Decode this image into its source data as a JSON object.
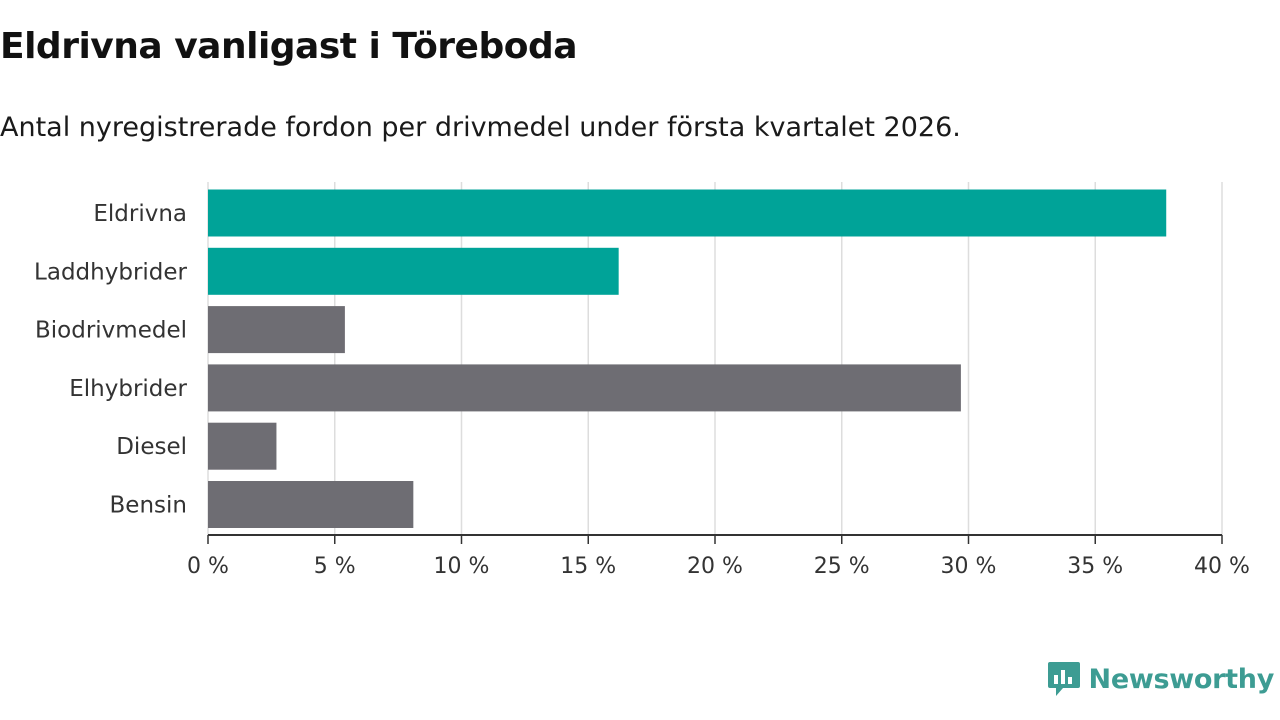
{
  "header": {
    "title": "Eldrivna vanligast i Töreboda",
    "subtitle": "Antal nyregistrerade fordon per drivmedel under första kvartalet 2026."
  },
  "colors": {
    "highlight": "#00a398",
    "neutral": "#6e6d73",
    "grid": "#dddddd",
    "axis": "#333333",
    "brand": "#3d9c93"
  },
  "chart_data": {
    "type": "bar",
    "orientation": "horizontal",
    "title": "Eldrivna vanligast i Töreboda",
    "subtitle": "Antal nyregistrerade fordon per drivmedel under första kvartalet 2026.",
    "categories": [
      "Eldrivna",
      "Laddhybrider",
      "Biodrivmedel",
      "Elhybrider",
      "Diesel",
      "Bensin"
    ],
    "values": [
      37.8,
      16.2,
      5.4,
      29.7,
      2.7,
      8.1
    ],
    "highlighted": [
      true,
      true,
      false,
      false,
      false,
      false
    ],
    "xlim": [
      0,
      40
    ],
    "xticks": [
      0,
      5,
      10,
      15,
      20,
      25,
      30,
      35,
      40
    ],
    "tick_labels": [
      "0 %",
      "5 %",
      "10 %",
      "15 %",
      "20 %",
      "25 %",
      "30 %",
      "35 %",
      "40 %"
    ],
    "grid": true,
    "xlabel": "",
    "ylabel": ""
  },
  "branding": {
    "name": "Newsworthy",
    "logo_icon": "bar-chart-speech-bubble-icon"
  }
}
